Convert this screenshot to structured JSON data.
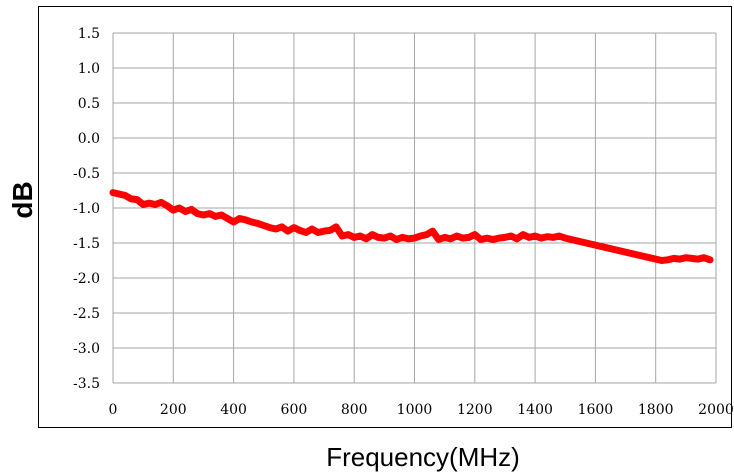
{
  "chart_data": {
    "type": "line",
    "title": "",
    "xlabel": "Frequency(MHz)",
    "ylabel": "dB",
    "xlim": [
      0,
      2000
    ],
    "ylim": [
      -3.5,
      1.5
    ],
    "x_ticks": [
      "0",
      "200",
      "400",
      "600",
      "800",
      "1000",
      "1200",
      "1400",
      "1600",
      "1800",
      "2000"
    ],
    "y_ticks": [
      "1.5",
      "1.0",
      "0.5",
      "0.0",
      "-0.5",
      "-1.0",
      "-1.5",
      "-2.0",
      "-2.5",
      "-3.0",
      "-3.5"
    ],
    "grid": true,
    "line_color": "#ff0000",
    "series": [
      {
        "x": [
          0,
          20,
          40,
          60,
          80,
          100,
          120,
          140,
          160,
          180,
          200,
          220,
          240,
          260,
          280,
          300,
          320,
          340,
          360,
          380,
          400,
          420,
          440,
          460,
          480,
          500,
          520,
          540,
          560,
          580,
          600,
          620,
          640,
          660,
          680,
          700,
          720,
          740,
          760,
          780,
          800,
          820,
          840,
          860,
          880,
          900,
          920,
          940,
          960,
          980,
          1000,
          1020,
          1040,
          1060,
          1080,
          1100,
          1120,
          1140,
          1160,
          1180,
          1200,
          1220,
          1240,
          1260,
          1280,
          1300,
          1320,
          1340,
          1360,
          1380,
          1400,
          1420,
          1440,
          1460,
          1480,
          1500,
          1550,
          1600,
          1650,
          1700,
          1750,
          1800,
          1820,
          1840,
          1860,
          1880,
          1900,
          1920,
          1940,
          1960,
          1980
        ],
        "y": [
          -0.78,
          -0.8,
          -0.82,
          -0.87,
          -0.88,
          -0.95,
          -0.93,
          -0.95,
          -0.92,
          -0.97,
          -1.03,
          -1.0,
          -1.05,
          -1.02,
          -1.08,
          -1.1,
          -1.08,
          -1.12,
          -1.1,
          -1.15,
          -1.2,
          -1.15,
          -1.17,
          -1.2,
          -1.22,
          -1.25,
          -1.28,
          -1.3,
          -1.27,
          -1.33,
          -1.28,
          -1.32,
          -1.35,
          -1.3,
          -1.35,
          -1.33,
          -1.32,
          -1.27,
          -1.4,
          -1.38,
          -1.42,
          -1.4,
          -1.44,
          -1.38,
          -1.42,
          -1.43,
          -1.4,
          -1.45,
          -1.42,
          -1.44,
          -1.43,
          -1.4,
          -1.38,
          -1.33,
          -1.45,
          -1.42,
          -1.44,
          -1.4,
          -1.43,
          -1.42,
          -1.38,
          -1.45,
          -1.43,
          -1.45,
          -1.43,
          -1.42,
          -1.4,
          -1.44,
          -1.38,
          -1.42,
          -1.4,
          -1.43,
          -1.41,
          -1.42,
          -1.4,
          -1.43,
          -1.48,
          -1.53,
          -1.58,
          -1.63,
          -1.68,
          -1.73,
          -1.75,
          -1.74,
          -1.72,
          -1.73,
          -1.71,
          -1.72,
          -1.73,
          -1.71,
          -1.74
        ]
      }
    ]
  }
}
